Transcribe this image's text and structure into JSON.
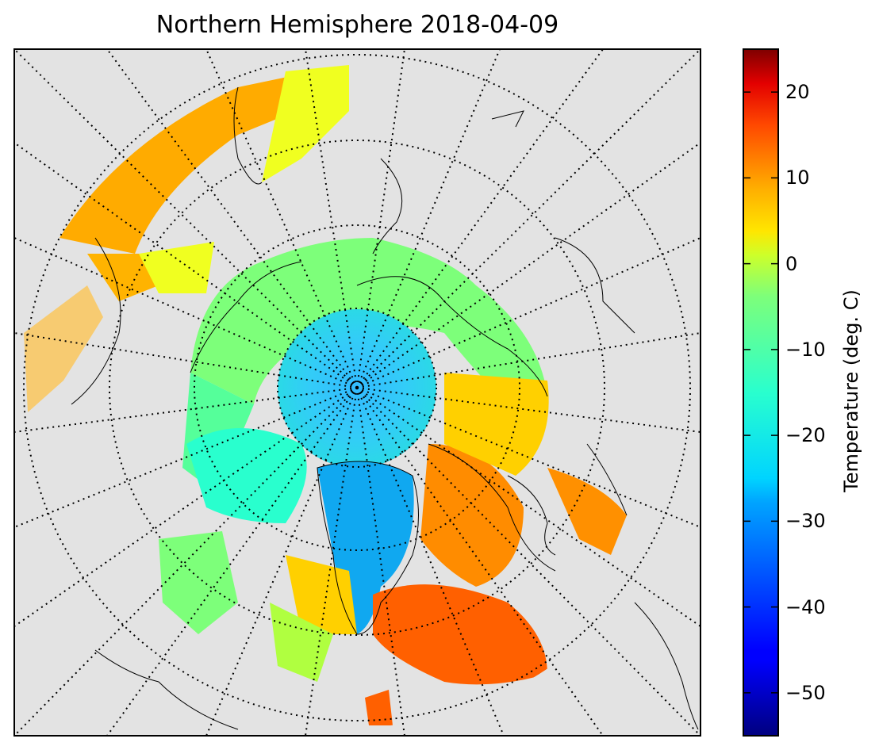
{
  "title": "Northern Hemisphere 2018-04-09",
  "map": {
    "projection": "north-polar-stereographic",
    "background_color": "#e3e3e3",
    "graticule": "dotted",
    "coastlines": true
  },
  "colorbar": {
    "label": "Temperature (deg. C)",
    "colormap": "jet",
    "vmin": -55,
    "vmax": 25,
    "ticks": [
      {
        "value": 20,
        "label": "20"
      },
      {
        "value": 10,
        "label": "10"
      },
      {
        "value": 0,
        "label": "0"
      },
      {
        "value": -10,
        "label": "−10"
      },
      {
        "value": -20,
        "label": "−20"
      },
      {
        "value": -30,
        "label": "−30"
      },
      {
        "value": -40,
        "label": "−40"
      },
      {
        "value": -50,
        "label": "−50"
      }
    ]
  }
}
